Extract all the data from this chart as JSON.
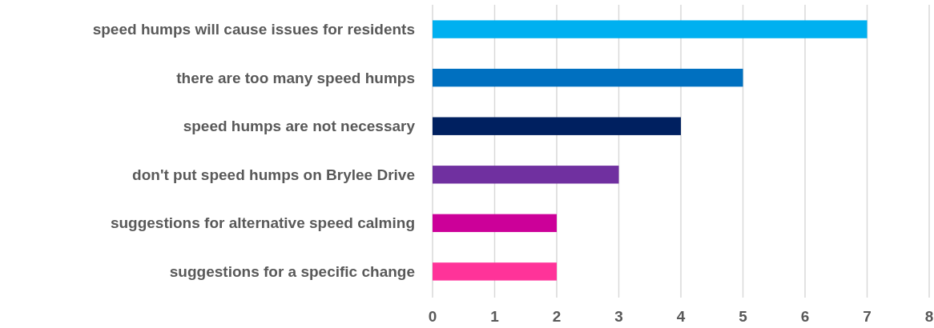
{
  "chart_data": {
    "type": "bar",
    "orientation": "horizontal",
    "categories": [
      "speed humps will cause issues for residents",
      "there are too many speed humps",
      "speed humps are not necessary",
      "don't put speed humps on Brylee Drive",
      "suggestions for alternative speed calming",
      "suggestions for a specific change"
    ],
    "values": [
      7,
      5,
      4,
      3,
      2,
      2
    ],
    "colors": [
      "#00b0f0",
      "#0070c0",
      "#002060",
      "#7030a0",
      "#cc0099",
      "#ff3399"
    ],
    "xlim": [
      0,
      8
    ],
    "xticks": [
      0,
      1,
      2,
      3,
      4,
      5,
      6,
      7,
      8
    ],
    "grid": "x"
  }
}
